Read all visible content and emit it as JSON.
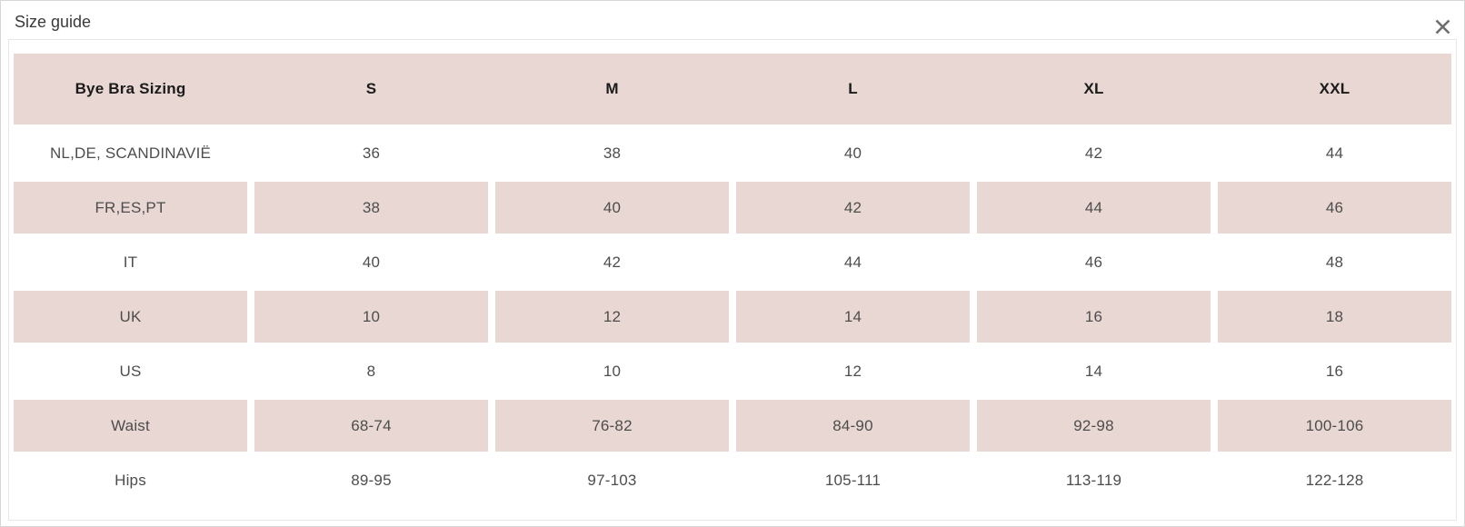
{
  "modal": {
    "title": "Size guide",
    "close_icon": "x-close"
  },
  "colors": {
    "row_pink": "#e8d7d2",
    "row_white": "#ffffff",
    "header_text": "#1b1b1b",
    "body_text": "#4d4d4d",
    "close_icon_gray": "#6e6e6e"
  },
  "chart_data": {
    "type": "table",
    "title": "Bye Bra Sizing",
    "columns": [
      "Bye Bra Sizing",
      "S",
      "M",
      "L",
      "XL",
      "XXL"
    ],
    "rows": [
      [
        "NL,DE, SCANDINAVIË",
        "36",
        "38",
        "40",
        "42",
        "44"
      ],
      [
        "FR,ES,PT",
        "38",
        "40",
        "42",
        "44",
        "46"
      ],
      [
        "IT",
        "40",
        "42",
        "44",
        "46",
        "48"
      ],
      [
        "UK",
        "10",
        "12",
        "14",
        "16",
        "18"
      ],
      [
        "US",
        "8",
        "10",
        "12",
        "14",
        "16"
      ],
      [
        "Waist",
        "68-74",
        "76-82",
        "84-90",
        "92-98",
        "100-106"
      ],
      [
        "Hips",
        "89-95",
        "97-103",
        "105-111",
        "113-119",
        "122-128"
      ]
    ]
  },
  "table": {
    "header": [
      "Bye Bra Sizing",
      "S",
      "M",
      "L",
      "XL",
      "XXL"
    ],
    "rows": [
      {
        "label": "NL,DE, SCANDINAVIË",
        "values": [
          "36",
          "38",
          "40",
          "42",
          "44"
        ]
      },
      {
        "label": "FR,ES,PT",
        "values": [
          "38",
          "40",
          "42",
          "44",
          "46"
        ]
      },
      {
        "label": "IT",
        "values": [
          "40",
          "42",
          "44",
          "46",
          "48"
        ]
      },
      {
        "label": "UK",
        "values": [
          "10",
          "12",
          "14",
          "16",
          "18"
        ]
      },
      {
        "label": "US",
        "values": [
          "8",
          "10",
          "12",
          "14",
          "16"
        ]
      },
      {
        "label": "Waist",
        "values": [
          "68-74",
          "76-82",
          "84-90",
          "92-98",
          "100-106"
        ]
      },
      {
        "label": "Hips",
        "values": [
          "89-95",
          "97-103",
          "105-111",
          "113-119",
          "122-128"
        ]
      }
    ]
  }
}
